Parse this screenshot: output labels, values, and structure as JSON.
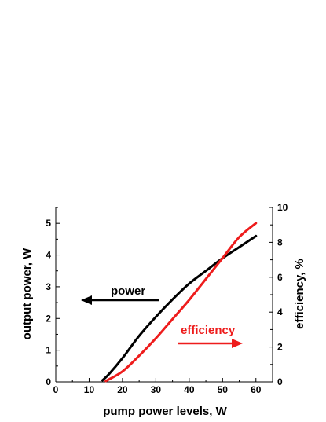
{
  "chart_data": {
    "type": "line",
    "xlabel": "pump power levels, W",
    "ylabel_left": "output power, W",
    "ylabel_right": "efficiency, %",
    "xlim": [
      0,
      65
    ],
    "ylim_left": [
      0,
      5.5
    ],
    "ylim_right": [
      0,
      10
    ],
    "x_ticks": [
      "0",
      "10",
      "20",
      "30",
      "40",
      "50",
      "60"
    ],
    "y_left_ticks": [
      "0",
      "1",
      "2",
      "3",
      "4",
      "5"
    ],
    "y_right_ticks": [
      "0",
      "2",
      "4",
      "6",
      "8",
      "10"
    ],
    "grid": false,
    "series": [
      {
        "name": "power",
        "axis": "left",
        "color": "#000000",
        "x": [
          14,
          16,
          20,
          25,
          30,
          35,
          40,
          45,
          50,
          55,
          60
        ],
        "y": [
          0.05,
          0.25,
          0.75,
          1.45,
          2.05,
          2.6,
          3.1,
          3.5,
          3.9,
          4.25,
          4.6
        ]
      },
      {
        "name": "efficiency",
        "axis": "right",
        "color": "#ee1c1c",
        "x": [
          15,
          20,
          25,
          30,
          35,
          40,
          45,
          50,
          55,
          60
        ],
        "y": [
          0.05,
          0.6,
          1.5,
          2.5,
          3.6,
          4.7,
          5.9,
          7.1,
          8.3,
          9.1
        ]
      }
    ],
    "annotations": [
      {
        "text": "power",
        "color": "#000000",
        "arrow": "left"
      },
      {
        "text": "efficiency",
        "color": "#ee1c1c",
        "arrow": "right"
      }
    ]
  }
}
